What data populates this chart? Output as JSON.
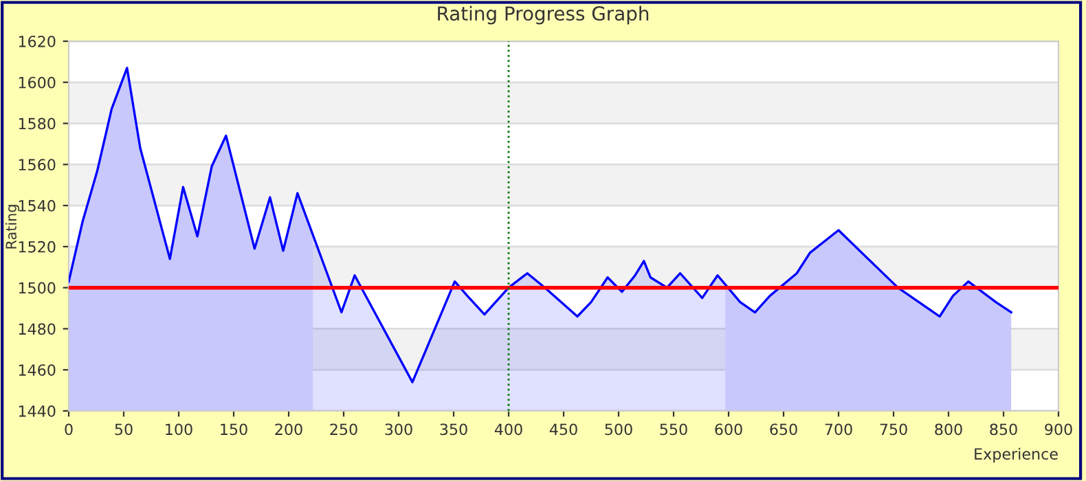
{
  "chart_data": {
    "type": "area",
    "title": "Rating Progress Graph",
    "xlabel": "Experience",
    "ylabel": "Rating",
    "series": [
      {
        "color": "#0000ff",
        "x": [
          0,
          12.5,
          26,
          39,
          53,
          65,
          92,
          104,
          117,
          130,
          143,
          169,
          183,
          195,
          208,
          248,
          260,
          312.5,
          351,
          362.5,
          378,
          400,
          417,
          433,
          462.5,
          475,
          490,
          503,
          515,
          523,
          529,
          544,
          556,
          576,
          590,
          610.5,
          624,
          637.5,
          662,
          674,
          700,
          725,
          754,
          792,
          804,
          818,
          843,
          857
        ],
        "values": [
          1503,
          1532,
          1557,
          1587,
          1607,
          1568,
          1514,
          1549,
          1525,
          1559,
          1574,
          1519,
          1544,
          1518,
          1546,
          1488,
          1506,
          1454,
          1503,
          1496,
          1487,
          1500,
          1507,
          1500,
          1486,
          1493,
          1505,
          1498,
          1506,
          1513,
          1505,
          1500,
          1507,
          1495,
          1506,
          1493,
          1488,
          1496,
          1507,
          1517,
          1528,
          1515,
          1500,
          1486,
          1496,
          1503,
          1493,
          1488
        ]
      }
    ],
    "bands": [
      {
        "axis": "x",
        "from": 0,
        "to": 222,
        "color": "#e4e4fc"
      },
      {
        "axis": "x",
        "from": 597,
        "to": 857,
        "color": "#e4e4fc"
      }
    ],
    "ref_lines": [
      {
        "axis": "y",
        "value": 1500,
        "color": "#ff0000",
        "line_style": "solid"
      },
      {
        "axis": "x",
        "value": 400,
        "color": "#007700",
        "line_style": "dotted"
      }
    ],
    "xlim": [
      0,
      900
    ],
    "ylim": [
      1440,
      1620
    ],
    "xticks": [
      0,
      50,
      100,
      150,
      200,
      250,
      300,
      350,
      400,
      450,
      500,
      550,
      600,
      650,
      700,
      750,
      800,
      850,
      900
    ],
    "yticks": [
      1440,
      1460,
      1480,
      1500,
      1520,
      1540,
      1560,
      1580,
      1600,
      1620
    ],
    "grid": "y",
    "legend": false,
    "marker": "none",
    "line_style": "solid"
  }
}
